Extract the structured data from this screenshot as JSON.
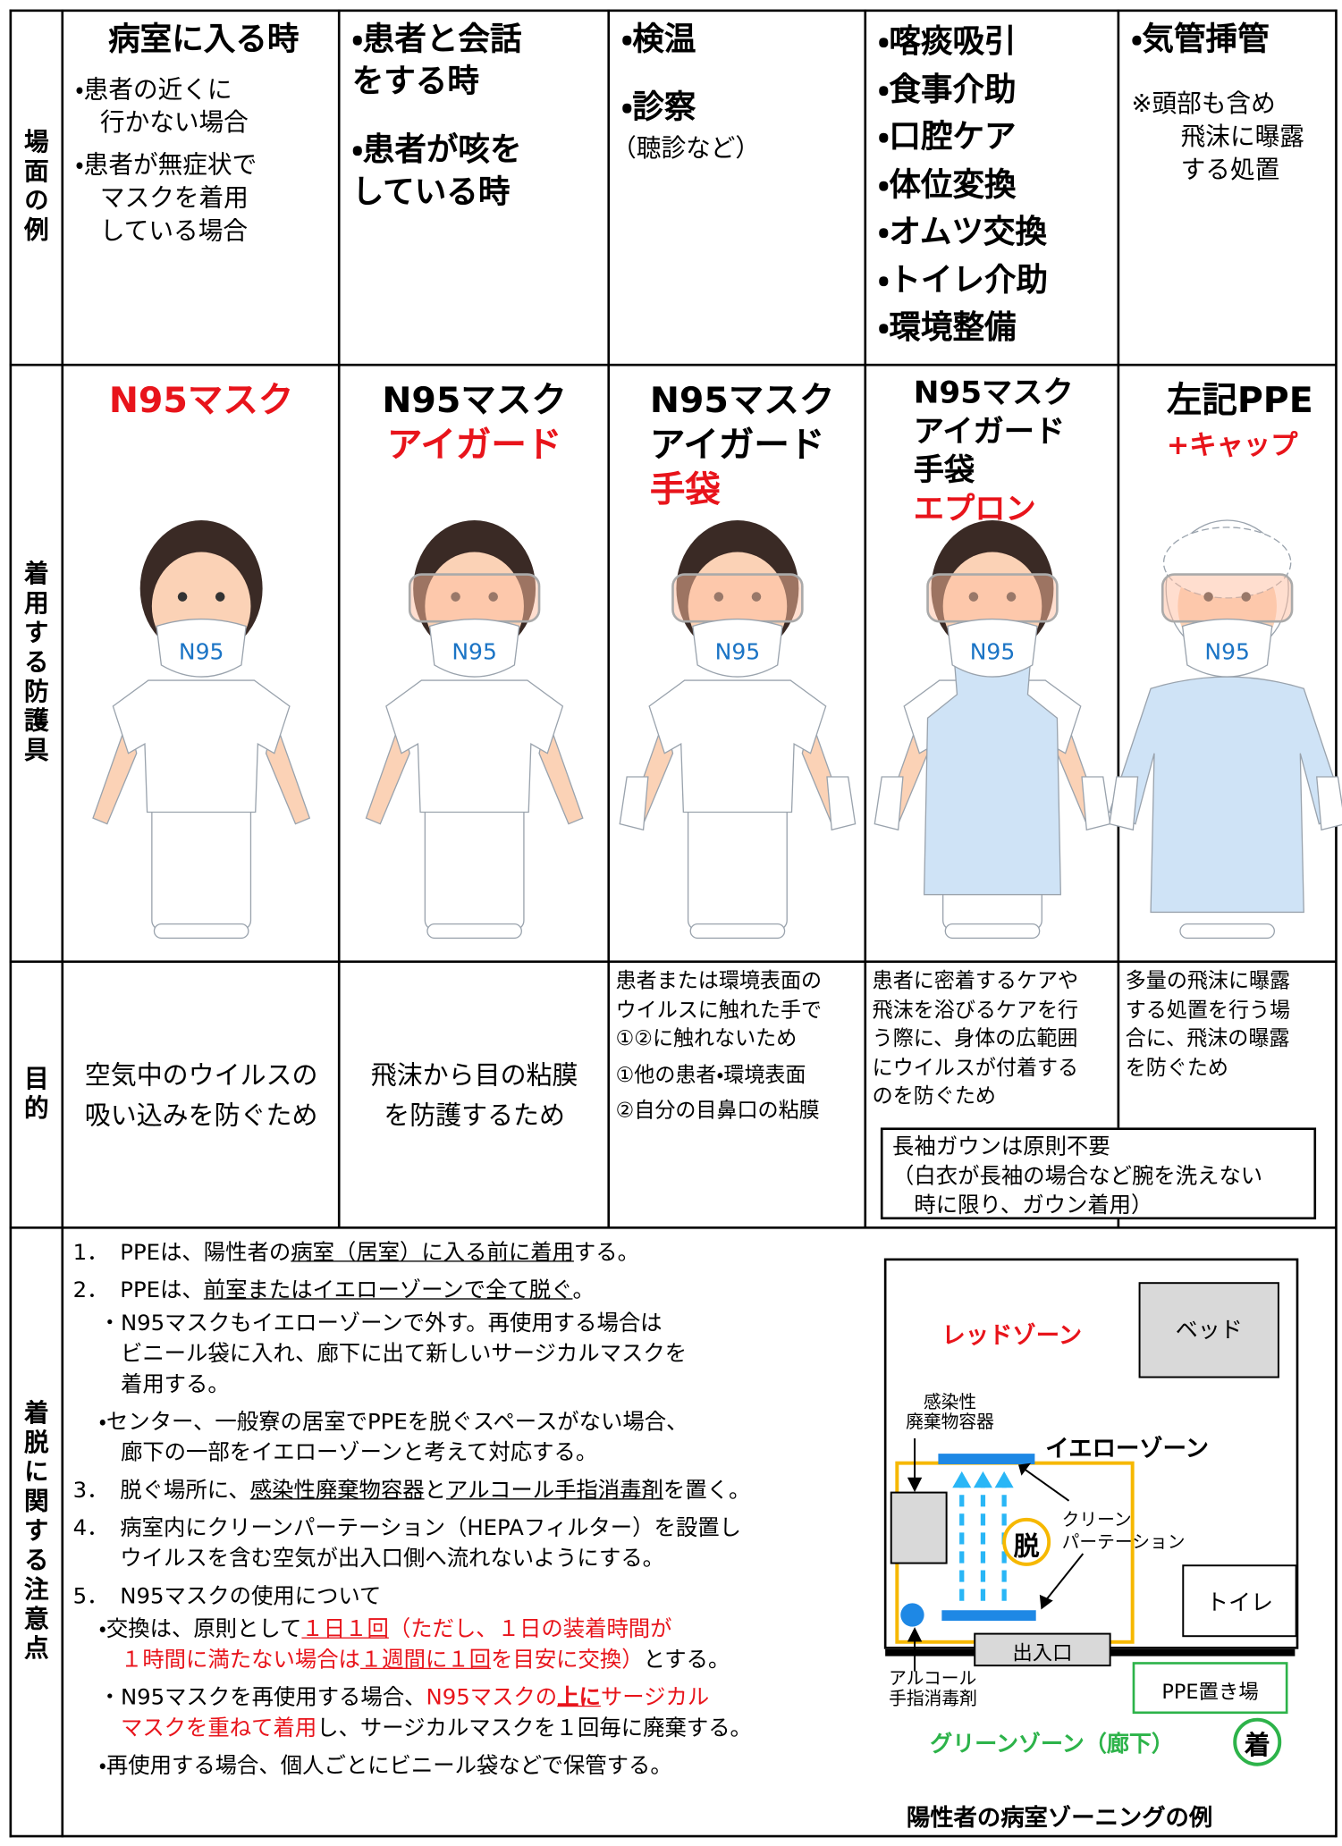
{
  "row_headers": [
    "場面の例",
    "着用する防護具",
    "目的",
    "着脱に関する注意点"
  ],
  "columns": [
    {
      "scene_title": "病室に入る時",
      "scene_items": [],
      "scene_notes": [
        "・患者の近くに\n行かない場合",
        "・患者が無症状で\nマスクを着用\nしている場合"
      ],
      "ppe": [
        {
          "text": "N95マスク",
          "red": true
        }
      ],
      "mask_label": "N95",
      "goggles": false,
      "gloves": false,
      "apron": false,
      "gown_cap": false,
      "purpose": [
        "空気中のウイルスの\n吸い込みを防ぐため"
      ]
    },
    {
      "scene_items": [
        "・患者と会話\nをする時",
        "・患者が咳を\nしている時"
      ],
      "scene_notes": [],
      "ppe": [
        {
          "text": "N95マスク",
          "red": false
        },
        {
          "text": "アイガード",
          "red": true
        }
      ],
      "mask_label": "N95",
      "goggles": true,
      "gloves": false,
      "apron": false,
      "gown_cap": false,
      "purpose": [
        "飛沫から目の粘膜\nを防護するため"
      ]
    },
    {
      "scene_items": [
        "・検温",
        "・診察"
      ],
      "scene_notes": [
        "（聴診など）"
      ],
      "ppe": [
        {
          "text": "N95マスク",
          "red": false
        },
        {
          "text": "アイガード",
          "red": false
        },
        {
          "text": "手袋",
          "red": true
        }
      ],
      "mask_label": "N95",
      "goggles": true,
      "gloves": true,
      "apron": false,
      "gown_cap": false,
      "purpose": [
        "患者または環境表面の\nウイルスに触れた手で\n①②に触れないため",
        "①他の患者・環境表面",
        "②自分の目鼻口の粘膜"
      ]
    },
    {
      "scene_items": [
        "・喀痰吸引",
        "・食事介助",
        "・口腔ケア",
        "・体位変換",
        "・オムツ交換",
        "・トイレ介助",
        "・環境整備"
      ],
      "scene_notes": [],
      "ppe": [
        {
          "text": "N95マスク",
          "red": false
        },
        {
          "text": "アイガード",
          "red": false
        },
        {
          "text": "手袋",
          "red": false
        },
        {
          "text": "エプロン",
          "red": true
        }
      ],
      "mask_label": "N95",
      "goggles": true,
      "gloves": true,
      "apron": true,
      "gown_cap": false,
      "purpose": [
        "患者に密着するケアや\n飛沫を浴びるケアを行\nう際に、身体の広範囲\nにウイルスが付着する\nのを防ぐため"
      ]
    },
    {
      "scene_items": [
        "・気管挿管"
      ],
      "scene_notes": [
        "※頭部も含め\n　飛沫に曝露\n　する処置"
      ],
      "ppe": [
        {
          "text": "左記PPE",
          "red": false
        },
        {
          "text": "+キャップ",
          "red": true
        }
      ],
      "mask_label": "N95",
      "goggles": true,
      "gloves": true,
      "apron": false,
      "gown_cap": true,
      "purpose": [
        "多量の飛沫に曝露\nする処置を行う場\n合に、飛沫の曝露\nを防ぐため"
      ]
    }
  ],
  "gown_note": "長袖ガウンは原則不要\n（白衣が長袖の場合など腕を洗えない\n　時に限り、ガウン着用）",
  "notes": [
    {
      "number": "1．",
      "segments": [
        "PPEは、陽性者の",
        {
          "text": "病室（居室）に入る前に着用",
          "underline": true
        },
        "する。"
      ],
      "subs": []
    },
    {
      "number": "2．",
      "segments": [
        "PPEは、",
        {
          "text": "前室またはイエローゾーンで全て脱ぐ",
          "underline": true
        },
        "。"
      ],
      "subs": [
        [
          "・N95マスクもイエローゾーンで外す。再使用する場合は\nビニール袋に入れ、廊下に出て新しいサージカルマスクを\n着用する。"
        ],
        [
          "・センター、一般寮の居室でPPEを脱ぐスペースがない場合、\n廊下の一部をイエローゾーンと考えて対応する。"
        ]
      ]
    },
    {
      "number": "3．",
      "segments": [
        "脱ぐ場所に、",
        {
          "text": "感染性廃棄物容器",
          "underline": true
        },
        "と",
        {
          "text": "アルコール手指消毒剤",
          "underline": true
        },
        "を置く。"
      ],
      "subs": []
    },
    {
      "number": "4．",
      "segments": [
        "病室内にクリーンパーテーション（HEPAフィルター）を設置し\nウイルスを含む空気が出入口側へ流れないようにする。"
      ],
      "subs": []
    },
    {
      "number": "5．",
      "segments": [
        "N95マスクの使用について"
      ],
      "subs": [
        [
          "・交換は、原則として",
          {
            "text": "１日１回",
            "red": true,
            "underline": true
          },
          {
            "text": "（ただし、１日の装着時間が\n１時間に満たない場合は",
            "red": true
          },
          {
            "text": "１週間に１回",
            "red": true,
            "underline": true
          },
          {
            "text": "を目安に交換）",
            "red": true
          },
          "とする。"
        ],
        [
          "・N95マスクを再使用する場合、",
          {
            "text": "N95マスクの",
            "red": true
          },
          {
            "text": "上に",
            "red": true,
            "bold": true,
            "underline": true
          },
          {
            "text": "サージカル\nマスクを重ねて着用",
            "red": true
          },
          "し、サージカルマスクを１回毎に廃棄する。"
        ],
        [
          "・再使用する場合、個人ごとにビニール袋などで保管する。"
        ]
      ]
    }
  ],
  "diagram": {
    "red_zone": "レッドゾーン",
    "bed": "ベッド",
    "waste": "感染性\n廃棄物容器",
    "yellow_zone": "イエローゾーン",
    "partition": "クリーン\nパーテーション",
    "doff": "脱",
    "toilet": "トイレ",
    "entrance": "出入口",
    "alcohol": "アルコール\n手指消毒剤",
    "ppe_area": "PPE置き場",
    "green_zone": "グリーンゾーン（廊下）",
    "don": "着",
    "caption": "陽性者の病室ゾーニングの例"
  }
}
